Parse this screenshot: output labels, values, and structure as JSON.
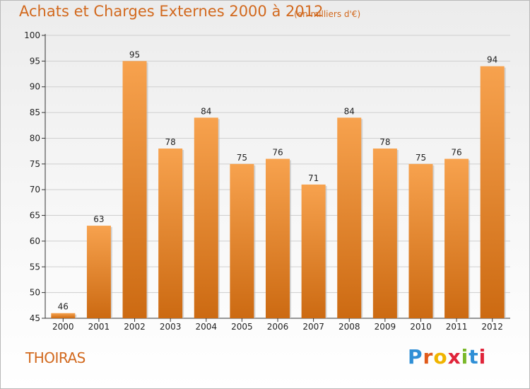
{
  "header": {
    "title": "Achats et Charges Externes 2000 à 2012",
    "subtitle": "(en milliers d'€)"
  },
  "footer": {
    "place": "THOIRAS",
    "brand": "Proxiti"
  },
  "colors": {
    "bar_light": "#f7a24e",
    "bar_dark": "#cc6a12",
    "text_accent": "#d2691e",
    "brand_letters": [
      "#2f8fd6",
      "#e05a1a",
      "#f0b400",
      "#e0243a",
      "#7ab82a",
      "#2f8fd6",
      "#e0243a"
    ]
  },
  "chart_data": {
    "type": "bar",
    "title": "Achats et Charges Externes 2000 à 2012",
    "subtitle": "(en milliers d'€)",
    "categories": [
      "2000",
      "2001",
      "2002",
      "2003",
      "2004",
      "2005",
      "2006",
      "2007",
      "2008",
      "2009",
      "2010",
      "2011",
      "2012"
    ],
    "values": [
      46,
      63,
      95,
      78,
      84,
      75,
      76,
      71,
      84,
      78,
      75,
      76,
      94
    ],
    "ylim": [
      45,
      100
    ],
    "yticks": [
      45,
      50,
      55,
      60,
      65,
      70,
      75,
      80,
      85,
      90,
      95,
      100
    ],
    "grid": true,
    "xlabel": "",
    "ylabel": ""
  }
}
